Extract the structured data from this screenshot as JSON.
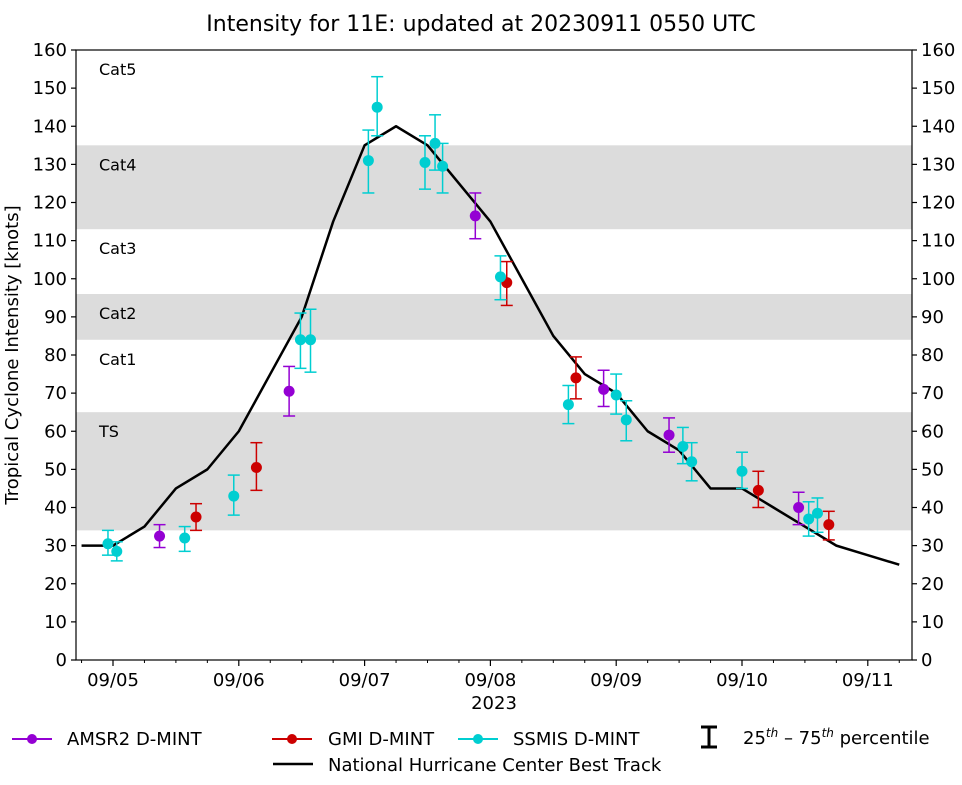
{
  "chart_data": {
    "type": "line",
    "title": "Intensity for 11E: updated at 20230911 0550 UTC",
    "xlabel": "2023",
    "ylabel": "Tropical Cyclone Intensity [knots]",
    "ylim": [
      0,
      160
    ],
    "yticks": [
      0,
      10,
      20,
      30,
      40,
      50,
      60,
      70,
      80,
      90,
      100,
      110,
      120,
      130,
      140,
      150,
      160
    ],
    "xlim_days": [
      -0.3,
      6.35
    ],
    "xtick_labels": [
      "09/05",
      "09/06",
      "09/07",
      "09/08",
      "09/09",
      "09/10",
      "09/11"
    ],
    "grid": false,
    "legend_placement": "bottom",
    "category_bands": [
      {
        "label": "TS",
        "range": [
          34,
          65
        ],
        "shaded": true
      },
      {
        "label": "Cat1",
        "range": [
          65,
          84
        ],
        "shaded": false
      },
      {
        "label": "Cat2",
        "range": [
          84,
          96
        ],
        "shaded": true
      },
      {
        "label": "Cat3",
        "range": [
          96,
          113
        ],
        "shaded": false
      },
      {
        "label": "Cat4",
        "range": [
          113,
          135
        ],
        "shaded": true
      },
      {
        "label": "Cat5",
        "range": [
          135,
          160
        ],
        "shaded": false
      }
    ],
    "band_color": "#dcdcdc",
    "best_track": {
      "name": "National Hurricane Center Best Track",
      "color": "#000000",
      "x_days": [
        -0.25,
        0,
        0.25,
        0.5,
        0.75,
        1.0,
        1.25,
        1.5,
        1.75,
        2.0,
        2.25,
        2.5,
        2.75,
        3.0,
        3.25,
        3.5,
        3.75,
        4.0,
        4.25,
        4.5,
        4.75,
        5.0,
        5.25,
        5.5,
        5.75,
        6.0,
        6.25
      ],
      "values": [
        30,
        30,
        35,
        45,
        50,
        60,
        75,
        90,
        115,
        135,
        140,
        135,
        125,
        115,
        100,
        85,
        75,
        70,
        60,
        55,
        45,
        45,
        40,
        35,
        30,
        27.5,
        25
      ]
    },
    "series": [
      {
        "name": "AMSR2 D-MINT",
        "color": "#9400d3",
        "points": [
          {
            "x_days": 0.37,
            "y": 32.5,
            "p25": 29.5,
            "p75": 35.5
          },
          {
            "x_days": 1.4,
            "y": 70.5,
            "p25": 64,
            "p75": 77
          },
          {
            "x_days": 2.88,
            "y": 116.5,
            "p25": 110.5,
            "p75": 122.5
          },
          {
            "x_days": 3.9,
            "y": 71,
            "p25": 66.5,
            "p75": 76
          },
          {
            "x_days": 4.42,
            "y": 59,
            "p25": 54.5,
            "p75": 63.5
          },
          {
            "x_days": 5.45,
            "y": 40,
            "p25": 35.5,
            "p75": 44
          }
        ]
      },
      {
        "name": "GMI D-MINT",
        "color": "#cc0000",
        "points": [
          {
            "x_days": 0.66,
            "y": 37.5,
            "p25": 34,
            "p75": 41
          },
          {
            "x_days": 1.14,
            "y": 50.5,
            "p25": 44.5,
            "p75": 57
          },
          {
            "x_days": 3.13,
            "y": 99,
            "p25": 93,
            "p75": 104.5
          },
          {
            "x_days": 3.68,
            "y": 74,
            "p25": 68.5,
            "p75": 79.5
          },
          {
            "x_days": 5.13,
            "y": 44.5,
            "p25": 40,
            "p75": 49.5
          },
          {
            "x_days": 5.69,
            "y": 35.5,
            "p25": 31.5,
            "p75": 39
          }
        ]
      },
      {
        "name": "SSMIS D-MINT",
        "color": "#00ced1",
        "points": [
          {
            "x_days": -0.04,
            "y": 30.5,
            "p25": 27.5,
            "p75": 34
          },
          {
            "x_days": 0.03,
            "y": 28.5,
            "p25": 26,
            "p75": 31
          },
          {
            "x_days": 0.57,
            "y": 32,
            "p25": 28.5,
            "p75": 35
          },
          {
            "x_days": 0.96,
            "y": 43,
            "p25": 38,
            "p75": 48.5
          },
          {
            "x_days": 1.49,
            "y": 84,
            "p25": 76.5,
            "p75": 91
          },
          {
            "x_days": 1.57,
            "y": 84,
            "p25": 75.5,
            "p75": 92
          },
          {
            "x_days": 2.03,
            "y": 131,
            "p25": 122.5,
            "p75": 139
          },
          {
            "x_days": 2.1,
            "y": 145,
            "p25": 137.5,
            "p75": 153
          },
          {
            "x_days": 2.48,
            "y": 130.5,
            "p25": 123.5,
            "p75": 137.5
          },
          {
            "x_days": 2.56,
            "y": 135.5,
            "p25": 128.5,
            "p75": 143
          },
          {
            "x_days": 2.62,
            "y": 129.5,
            "p25": 122.5,
            "p75": 135.5
          },
          {
            "x_days": 3.08,
            "y": 100.5,
            "p25": 94.5,
            "p75": 106
          },
          {
            "x_days": 3.62,
            "y": 67,
            "p25": 62,
            "p75": 72
          },
          {
            "x_days": 4.0,
            "y": 69.5,
            "p25": 64.5,
            "p75": 75
          },
          {
            "x_days": 4.08,
            "y": 63,
            "p25": 57.5,
            "p75": 68
          },
          {
            "x_days": 4.53,
            "y": 56,
            "p25": 51.5,
            "p75": 61
          },
          {
            "x_days": 4.6,
            "y": 52,
            "p25": 47,
            "p75": 57
          },
          {
            "x_days": 5.0,
            "y": 49.5,
            "p25": 45,
            "p75": 54.5
          },
          {
            "x_days": 5.53,
            "y": 37,
            "p25": 32.5,
            "p75": 41.5
          },
          {
            "x_days": 5.6,
            "y": 38.5,
            "p25": 33.5,
            "p75": 42.5
          }
        ]
      }
    ],
    "legend": {
      "entries": [
        "AMSR2 D-MINT",
        "GMI D-MINT",
        "SSMIS D-MINT",
        "National Hurricane Center Best Track"
      ],
      "percentile_label_a": "25",
      "percentile_sup_a": "th",
      "percentile_dash": " – ",
      "percentile_label_b": "75",
      "percentile_sup_b": "th",
      "percentile_suffix": " percentile"
    }
  }
}
